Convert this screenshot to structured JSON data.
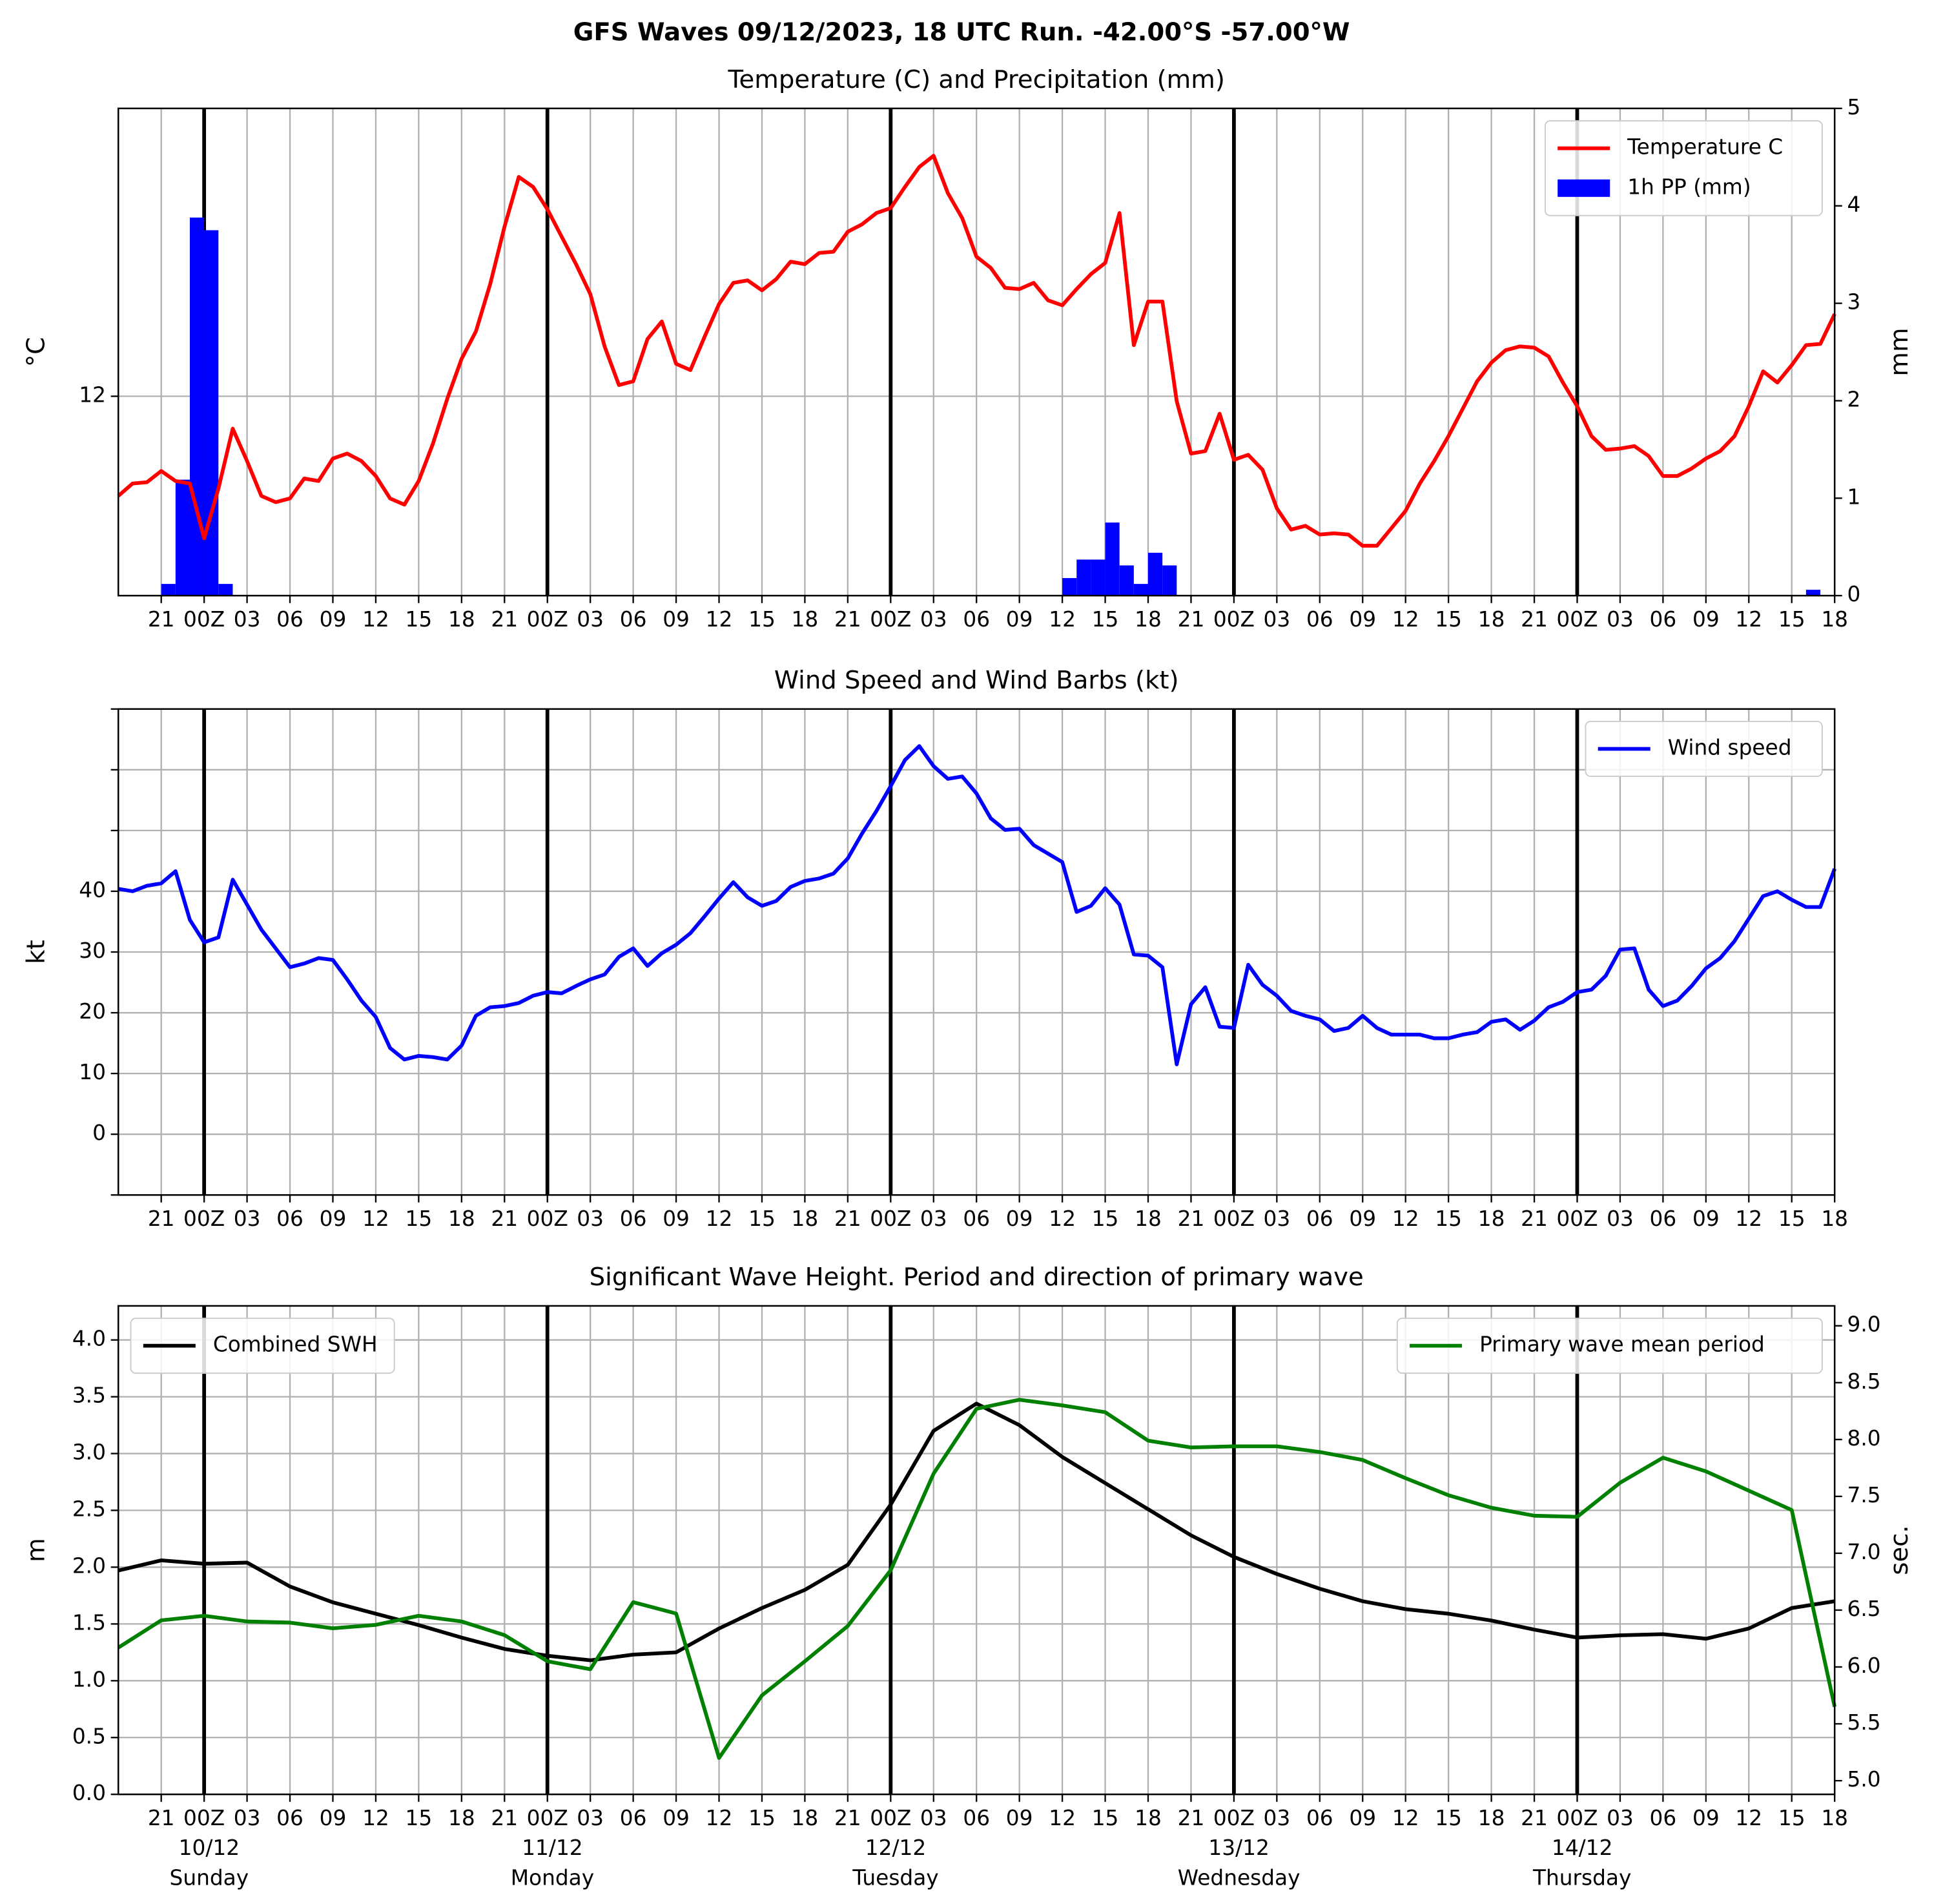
{
  "title": "GFS Waves 09/12/2023, 18 UTC Run. -42.00°S -57.00°W",
  "xlim": [
    0,
    120
  ],
  "xticks": [
    {
      "value": 3,
      "label": "21"
    },
    {
      "value": 6,
      "label": "00Z"
    },
    {
      "value": 9,
      "label": "03"
    },
    {
      "value": 12,
      "label": "06"
    },
    {
      "value": 15,
      "label": "09"
    },
    {
      "value": 18,
      "label": "12"
    },
    {
      "value": 21,
      "label": "15"
    },
    {
      "value": 24,
      "label": "18"
    },
    {
      "value": 27,
      "label": "21"
    },
    {
      "value": 30,
      "label": "00Z"
    },
    {
      "value": 33,
      "label": "03"
    },
    {
      "value": 36,
      "label": "06"
    },
    {
      "value": 39,
      "label": "09"
    },
    {
      "value": 42,
      "label": "12"
    },
    {
      "value": 45,
      "label": "15"
    },
    {
      "value": 48,
      "label": "18"
    },
    {
      "value": 51,
      "label": "21"
    },
    {
      "value": 54,
      "label": "00Z"
    },
    {
      "value": 57,
      "label": "03"
    },
    {
      "value": 60,
      "label": "06"
    },
    {
      "value": 63,
      "label": "09"
    },
    {
      "value": 66,
      "label": "12"
    },
    {
      "value": 69,
      "label": "15"
    },
    {
      "value": 72,
      "label": "18"
    },
    {
      "value": 75,
      "label": "21"
    },
    {
      "value": 78,
      "label": "00Z"
    },
    {
      "value": 81,
      "label": "03"
    },
    {
      "value": 84,
      "label": "06"
    },
    {
      "value": 87,
      "label": "09"
    },
    {
      "value": 90,
      "label": "12"
    },
    {
      "value": 93,
      "label": "15"
    },
    {
      "value": 96,
      "label": "18"
    },
    {
      "value": 99,
      "label": "21"
    },
    {
      "value": 102,
      "label": "00Z"
    },
    {
      "value": 105,
      "label": "03"
    },
    {
      "value": 108,
      "label": "06"
    },
    {
      "value": 111,
      "label": "09"
    },
    {
      "value": 114,
      "label": "12"
    },
    {
      "value": 117,
      "label": "15"
    },
    {
      "value": 120,
      "label": "18"
    }
  ],
  "date_ticks": [
    {
      "value": 6,
      "label": "10/12",
      "weekday": "Sunday"
    },
    {
      "value": 30,
      "label": "11/12",
      "weekday": "Monday"
    },
    {
      "value": 54,
      "label": "12/12",
      "weekday": "Tuesday"
    },
    {
      "value": 78,
      "label": "13/12",
      "weekday": "Wednesday"
    },
    {
      "value": 102,
      "label": "14/12",
      "weekday": "Thursday"
    }
  ],
  "chart_data": [
    {
      "type": "combo",
      "title": "Temperature (C) and Precipitation (mm)",
      "ylabel": "°C",
      "y2label": "mm",
      "ylim": [
        10.4,
        14.31
      ],
      "yticks": [
        12
      ],
      "y2lim": [
        0,
        5
      ],
      "y2ticks": [
        0,
        1,
        2,
        3,
        4,
        5
      ],
      "grid": true,
      "legend": "upper right",
      "x": [
        0,
        1,
        2,
        3,
        4,
        5,
        6,
        7,
        8,
        9,
        10,
        11,
        12,
        13,
        14,
        15,
        16,
        17,
        18,
        19,
        20,
        21,
        22,
        23,
        24,
        25,
        26,
        27,
        28,
        29,
        30,
        31,
        32,
        33,
        34,
        35,
        36,
        37,
        38,
        39,
        40,
        41,
        42,
        43,
        44,
        45,
        46,
        47,
        48,
        49,
        50,
        51,
        52,
        53,
        54,
        55,
        56,
        57,
        58,
        59,
        60,
        61,
        62,
        63,
        64,
        65,
        66,
        67,
        68,
        69,
        70,
        71,
        72,
        73,
        74,
        75,
        76,
        77,
        78,
        79,
        80,
        81,
        82,
        83,
        84,
        85,
        86,
        87,
        88,
        89,
        90,
        91,
        92,
        93,
        94,
        95,
        96,
        97,
        98,
        99,
        100,
        101,
        102,
        103,
        104,
        105,
        106,
        107,
        108,
        109,
        110,
        111,
        112,
        113,
        114,
        115,
        116,
        117,
        118,
        119,
        120
      ],
      "series": [
        {
          "name": "Temperature C",
          "type": "line",
          "color": "#ff0000",
          "values": [
            11.2,
            11.3,
            11.31,
            11.4,
            11.32,
            11.3,
            10.86,
            11.26,
            11.74,
            11.48,
            11.2,
            11.15,
            11.18,
            11.34,
            11.32,
            11.5,
            11.54,
            11.48,
            11.36,
            11.18,
            11.13,
            11.32,
            11.62,
            11.98,
            12.3,
            12.52,
            12.9,
            13.36,
            13.76,
            13.68,
            13.5,
            13.28,
            13.06,
            12.82,
            12.4,
            12.09,
            12.12,
            12.46,
            12.6,
            12.26,
            12.21,
            12.48,
            12.74,
            12.91,
            12.93,
            12.85,
            12.94,
            13.08,
            13.06,
            13.15,
            13.16,
            13.32,
            13.38,
            13.47,
            13.51,
            13.68,
            13.84,
            13.93,
            13.63,
            13.43,
            13.12,
            13.03,
            12.87,
            12.86,
            12.91,
            12.77,
            12.73,
            12.86,
            12.98,
            13.07,
            13.47,
            12.41,
            12.76,
            12.76,
            11.96,
            11.54,
            11.56,
            11.86,
            11.49,
            11.53,
            11.41,
            11.1,
            10.93,
            10.96,
            10.89,
            10.9,
            10.89,
            10.8,
            10.8,
            10.94,
            11.08,
            11.3,
            11.48,
            11.68,
            11.9,
            12.12,
            12.27,
            12.37,
            12.4,
            12.39,
            12.32,
            12.11,
            11.92,
            11.68,
            11.57,
            11.58,
            11.6,
            11.52,
            11.36,
            11.36,
            11.42,
            11.5,
            11.56,
            11.68,
            11.92,
            12.2,
            12.11,
            12.25,
            12.41,
            12.42,
            12.66
          ]
        },
        {
          "name": "1h PP (mm)",
          "type": "bar",
          "axis": "y2",
          "color": "#0000ff",
          "x": [
            3,
            4,
            5,
            6,
            7,
            66,
            67,
            68,
            69,
            70,
            71,
            72,
            73,
            118
          ],
          "values": [
            0.12,
            1.19,
            3.88,
            3.75,
            0.12,
            0.18,
            0.37,
            0.37,
            0.75,
            0.31,
            0.12,
            0.44,
            0.31,
            0.06
          ]
        }
      ]
    },
    {
      "type": "line",
      "title": "Wind Speed and Wind Barbs (kt)",
      "ylabel": "kt",
      "ylim": [
        -10,
        70
      ],
      "yticks": [
        0,
        10,
        20,
        30,
        40
      ],
      "yticks_minor": [
        -10,
        50,
        60,
        70
      ],
      "grid": true,
      "legend": "upper right",
      "x": [
        0,
        1,
        2,
        3,
        4,
        5,
        6,
        7,
        8,
        9,
        10,
        11,
        12,
        13,
        14,
        15,
        16,
        17,
        18,
        19,
        20,
        21,
        22,
        23,
        24,
        25,
        26,
        27,
        28,
        29,
        30,
        31,
        32,
        33,
        34,
        35,
        36,
        37,
        38,
        39,
        40,
        41,
        42,
        43,
        44,
        45,
        46,
        47,
        48,
        49,
        50,
        51,
        52,
        53,
        54,
        55,
        56,
        57,
        58,
        59,
        60,
        61,
        62,
        63,
        64,
        65,
        66,
        67,
        68,
        69,
        70,
        71,
        72,
        73,
        74,
        75,
        76,
        77,
        78,
        79,
        80,
        81,
        82,
        83,
        84,
        85,
        86,
        87,
        88,
        89,
        90,
        91,
        92,
        93,
        94,
        95,
        96,
        97,
        98,
        99,
        100,
        101,
        102,
        103,
        104,
        105,
        106,
        107,
        108,
        109,
        110,
        111,
        112,
        113,
        114,
        115,
        116,
        117,
        118,
        119,
        120
      ],
      "series": [
        {
          "name": "Wind speed",
          "type": "line",
          "color": "#0000ff",
          "values": [
            40.4,
            40,
            40.9,
            41.3,
            43.3,
            35.3,
            31.6,
            32.4,
            41.9,
            37.8,
            33.7,
            30.6,
            27.5,
            28.1,
            29,
            28.7,
            25.5,
            22,
            19.3,
            14.2,
            12.3,
            12.9,
            12.7,
            12.3,
            14.6,
            19.5,
            20.9,
            21.1,
            21.6,
            22.8,
            23.4,
            23.2,
            24.4,
            25.5,
            26.3,
            29.2,
            30.6,
            27.7,
            29.8,
            31.2,
            33.1,
            35.9,
            38.8,
            41.5,
            39,
            37.6,
            38.4,
            40.7,
            41.7,
            42.1,
            42.9,
            45.4,
            49.5,
            53.2,
            57.3,
            61.6,
            63.9,
            60.6,
            58.5,
            58.9,
            56.1,
            52,
            50.1,
            50.3,
            47.6,
            46.2,
            44.8,
            36.6,
            37.6,
            40.5,
            37.8,
            29.6,
            29.4,
            27.5,
            11.5,
            21.4,
            24.2,
            17.7,
            17.5,
            27.9,
            24.6,
            22.8,
            20.3,
            19.5,
            18.9,
            17,
            17.5,
            19.5,
            17.5,
            16.4,
            16.4,
            16.4,
            15.8,
            15.8,
            16.4,
            16.8,
            18.5,
            18.9,
            17.2,
            18.7,
            20.9,
            21.8,
            23.4,
            23.8,
            26.1,
            30.4,
            30.6,
            23.8,
            21.1,
            22,
            24.4,
            27.3,
            29,
            31.8,
            35.5,
            39.2,
            40,
            38.6,
            37.4,
            37.4,
            43.7
          ]
        }
      ]
    },
    {
      "type": "combo",
      "title": "Significant Wave Height. Period and direction of primary wave",
      "ylabel": "m",
      "y2label": "sec.",
      "y2label_color": "#008000",
      "ylim": [
        0,
        4.3
      ],
      "yticks": [
        {
          "value": 0,
          "label": "0.0"
        },
        0.5,
        {
          "value": 1,
          "label": "1.0"
        },
        1.5,
        {
          "value": 2,
          "label": "2.0"
        },
        2.5,
        {
          "value": 3,
          "label": "3.0"
        },
        3.5,
        {
          "value": 4,
          "label": "4.0"
        }
      ],
      "y2lim": [
        4.88,
        9.175
      ],
      "y2ticks": [
        {
          "value": 5,
          "label": "5.0"
        },
        5.5,
        {
          "value": 6,
          "label": "6.0"
        },
        6.5,
        {
          "value": 7,
          "label": "7.0"
        },
        7.5,
        {
          "value": 8,
          "label": "8.0"
        },
        8.5,
        {
          "value": 9,
          "label": "9.0"
        }
      ],
      "grid": true,
      "x": [
        0,
        3,
        6,
        9,
        12,
        15,
        18,
        21,
        24,
        27,
        30,
        33,
        36,
        39,
        42,
        45,
        48,
        51,
        54,
        57,
        60,
        63,
        66,
        69,
        72,
        75,
        78,
        81,
        84,
        87,
        90,
        93,
        96,
        99,
        102,
        105,
        108,
        111,
        114,
        117,
        120
      ],
      "series": [
        {
          "name": "Combined SWH",
          "type": "line",
          "color": "#000000",
          "legend": "upper left",
          "values": [
            1.97,
            2.06,
            2.03,
            2.04,
            1.83,
            1.69,
            1.59,
            1.49,
            1.38,
            1.28,
            1.22,
            1.18,
            1.23,
            1.25,
            1.46,
            1.64,
            1.8,
            2.02,
            2.55,
            3.2,
            3.44,
            3.25,
            2.97,
            2.74,
            2.51,
            2.28,
            2.09,
            1.94,
            1.81,
            1.7,
            1.63,
            1.59,
            1.53,
            1.45,
            1.38,
            1.4,
            1.41,
            1.37,
            1.46,
            1.64,
            1.7
          ]
        },
        {
          "name": "Primary wave mean period",
          "type": "line",
          "axis": "y2",
          "color": "#008000",
          "legend": "upper right",
          "values": [
            6.17,
            6.41,
            6.45,
            6.4,
            6.39,
            6.34,
            6.37,
            6.45,
            6.4,
            6.28,
            6.05,
            5.98,
            6.57,
            6.47,
            5.2,
            5.75,
            6.05,
            6.36,
            6.85,
            7.7,
            8.27,
            8.35,
            8.3,
            8.24,
            7.99,
            7.93,
            7.94,
            7.94,
            7.89,
            7.82,
            7.66,
            7.51,
            7.4,
            7.33,
            7.32,
            7.62,
            7.84,
            7.72,
            7.55,
            7.38,
            5.65
          ]
        }
      ]
    }
  ]
}
